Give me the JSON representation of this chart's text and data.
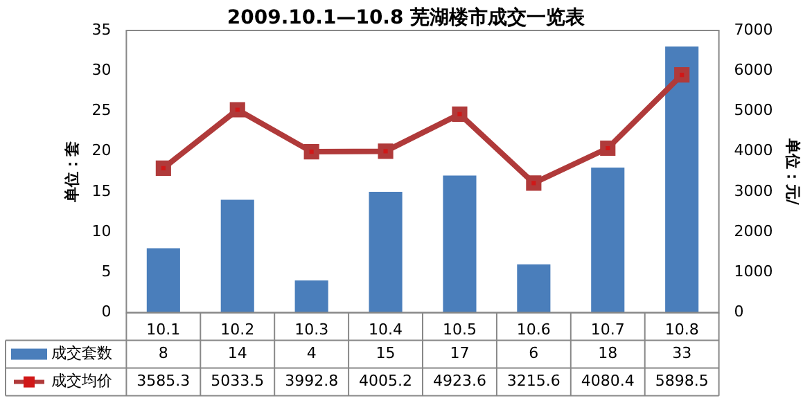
{
  "chart_data": {
    "type": "bar",
    "title": "2009.10.1—10.8 芜湖楼市成交一览表",
    "ylabel": "单位：套",
    "y2label": "单位：元/",
    "categories": [
      "10.1",
      "10.2",
      "10.3",
      "10.4",
      "10.5",
      "10.6",
      "10.7",
      "10.8"
    ],
    "series": [
      {
        "name": "成交套数",
        "color": "#4a7ebb",
        "values": [
          8,
          14,
          4,
          15,
          17,
          6,
          18,
          33
        ]
      },
      {
        "name": "成交均价",
        "type": "line",
        "axis": "y2",
        "color": "#b03a3a",
        "values": [
          3585.3,
          5033.5,
          3992.8,
          4005.2,
          4923.6,
          3215.6,
          4080.4,
          5898.5
        ]
      }
    ],
    "ylim": [
      0,
      35
    ],
    "yticks": [
      0,
      5,
      10,
      15,
      20,
      25,
      30,
      35
    ],
    "y2lim": [
      0,
      7000
    ],
    "y2ticks": [
      0,
      1000,
      2000,
      3000,
      4000,
      5000,
      6000,
      7000
    ],
    "grid": false,
    "legend": "bottom",
    "marker": "square",
    "data_labels": true
  }
}
